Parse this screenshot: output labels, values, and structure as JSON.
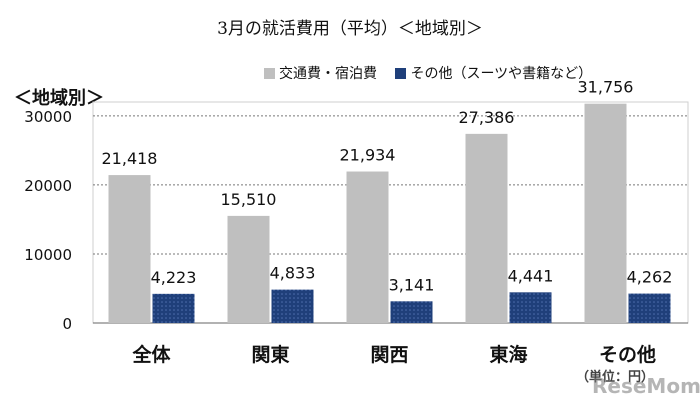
{
  "title": "3月の就活費用（平均）＜地域別＞",
  "subtitle": "＜地域別＞",
  "unit_note": "（単位：円）",
  "watermark": "ReseMom",
  "chart_data": {
    "type": "bar",
    "title": "3月の就活費用（平均）＜地域別＞",
    "categories": [
      "全体",
      "関東",
      "関西",
      "東海",
      "その他"
    ],
    "series": [
      {
        "name": "交通費・宿泊費",
        "values": [
          21418,
          15510,
          21934,
          27386,
          31756
        ],
        "color": "#bfbfbf"
      },
      {
        "name": "その他（スーツや書籍など）",
        "values": [
          4223,
          4833,
          3141,
          4441,
          4262
        ],
        "color": "#1f3f7a"
      }
    ],
    "ylim": [
      0,
      32000
    ],
    "yticks": [
      0,
      10000,
      20000,
      30000
    ],
    "grid": true,
    "legend_position": "top-right",
    "data_labels": [
      [
        "21,418",
        "15,510",
        "21,934",
        "27,386",
        "31,756"
      ],
      [
        "4,223",
        "4,833",
        "3,141",
        "4,441",
        "4,262"
      ]
    ]
  }
}
